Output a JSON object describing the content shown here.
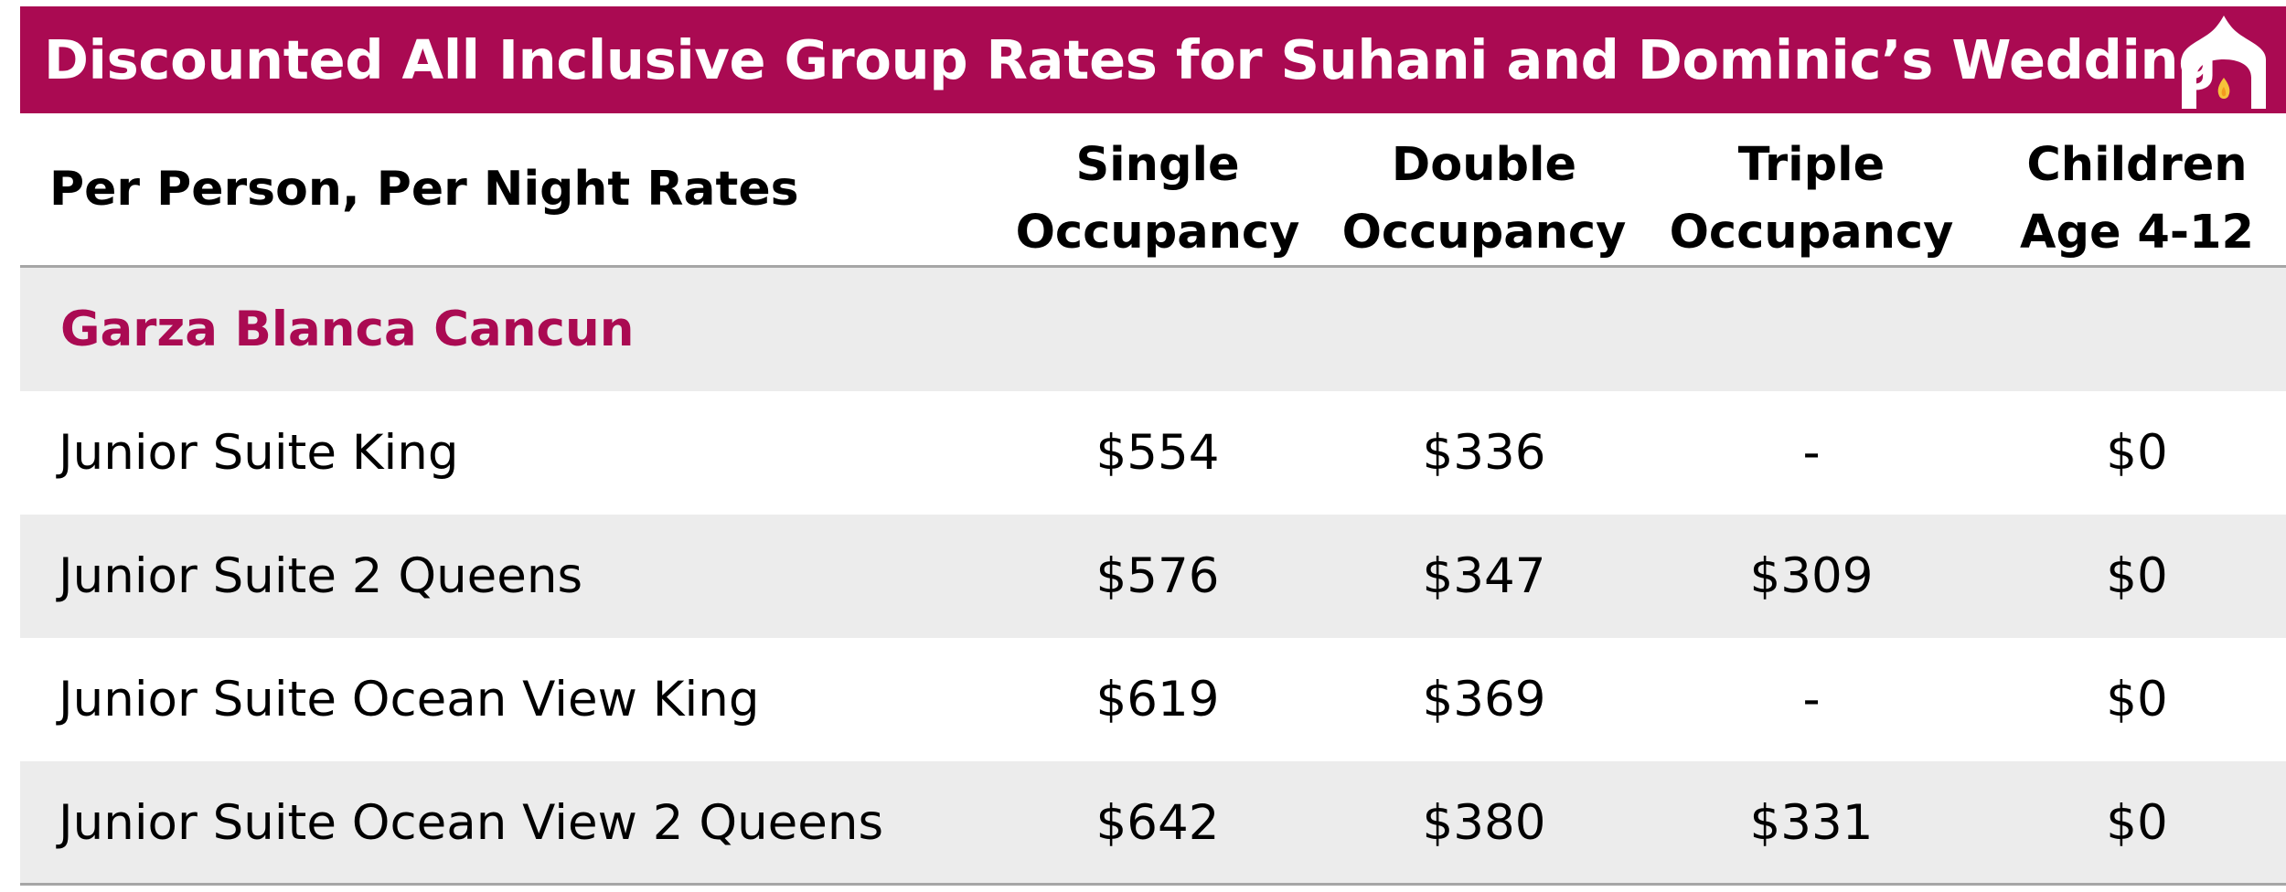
{
  "banner": {
    "title": "Discounted All Inclusive Group Rates for Suhani and Dominic’s Wedding",
    "color": "#aa0a52",
    "logo_icon": "mandap-flame-icon"
  },
  "table": {
    "header_label": "Per Person, Per Night Rates",
    "columns": [
      "Single\nOccupancy",
      "Double\nOccupancy",
      "Triple\nOccupancy",
      "Children\nAge 4-12"
    ],
    "section": "Garza Blanca Cancun",
    "rows": [
      {
        "name": "Junior Suite King",
        "values": [
          "$554",
          "$336",
          "-",
          "$0"
        ]
      },
      {
        "name": "Junior Suite 2 Queens",
        "values": [
          "$576",
          "$347",
          "$309",
          "$0"
        ]
      },
      {
        "name": "Junior Suite Ocean View King",
        "values": [
          "$619",
          "$369",
          "-",
          "$0"
        ]
      },
      {
        "name": "Junior Suite Ocean View 2 Queens",
        "values": [
          "$642",
          "$380",
          "$331",
          "$0"
        ]
      }
    ]
  }
}
